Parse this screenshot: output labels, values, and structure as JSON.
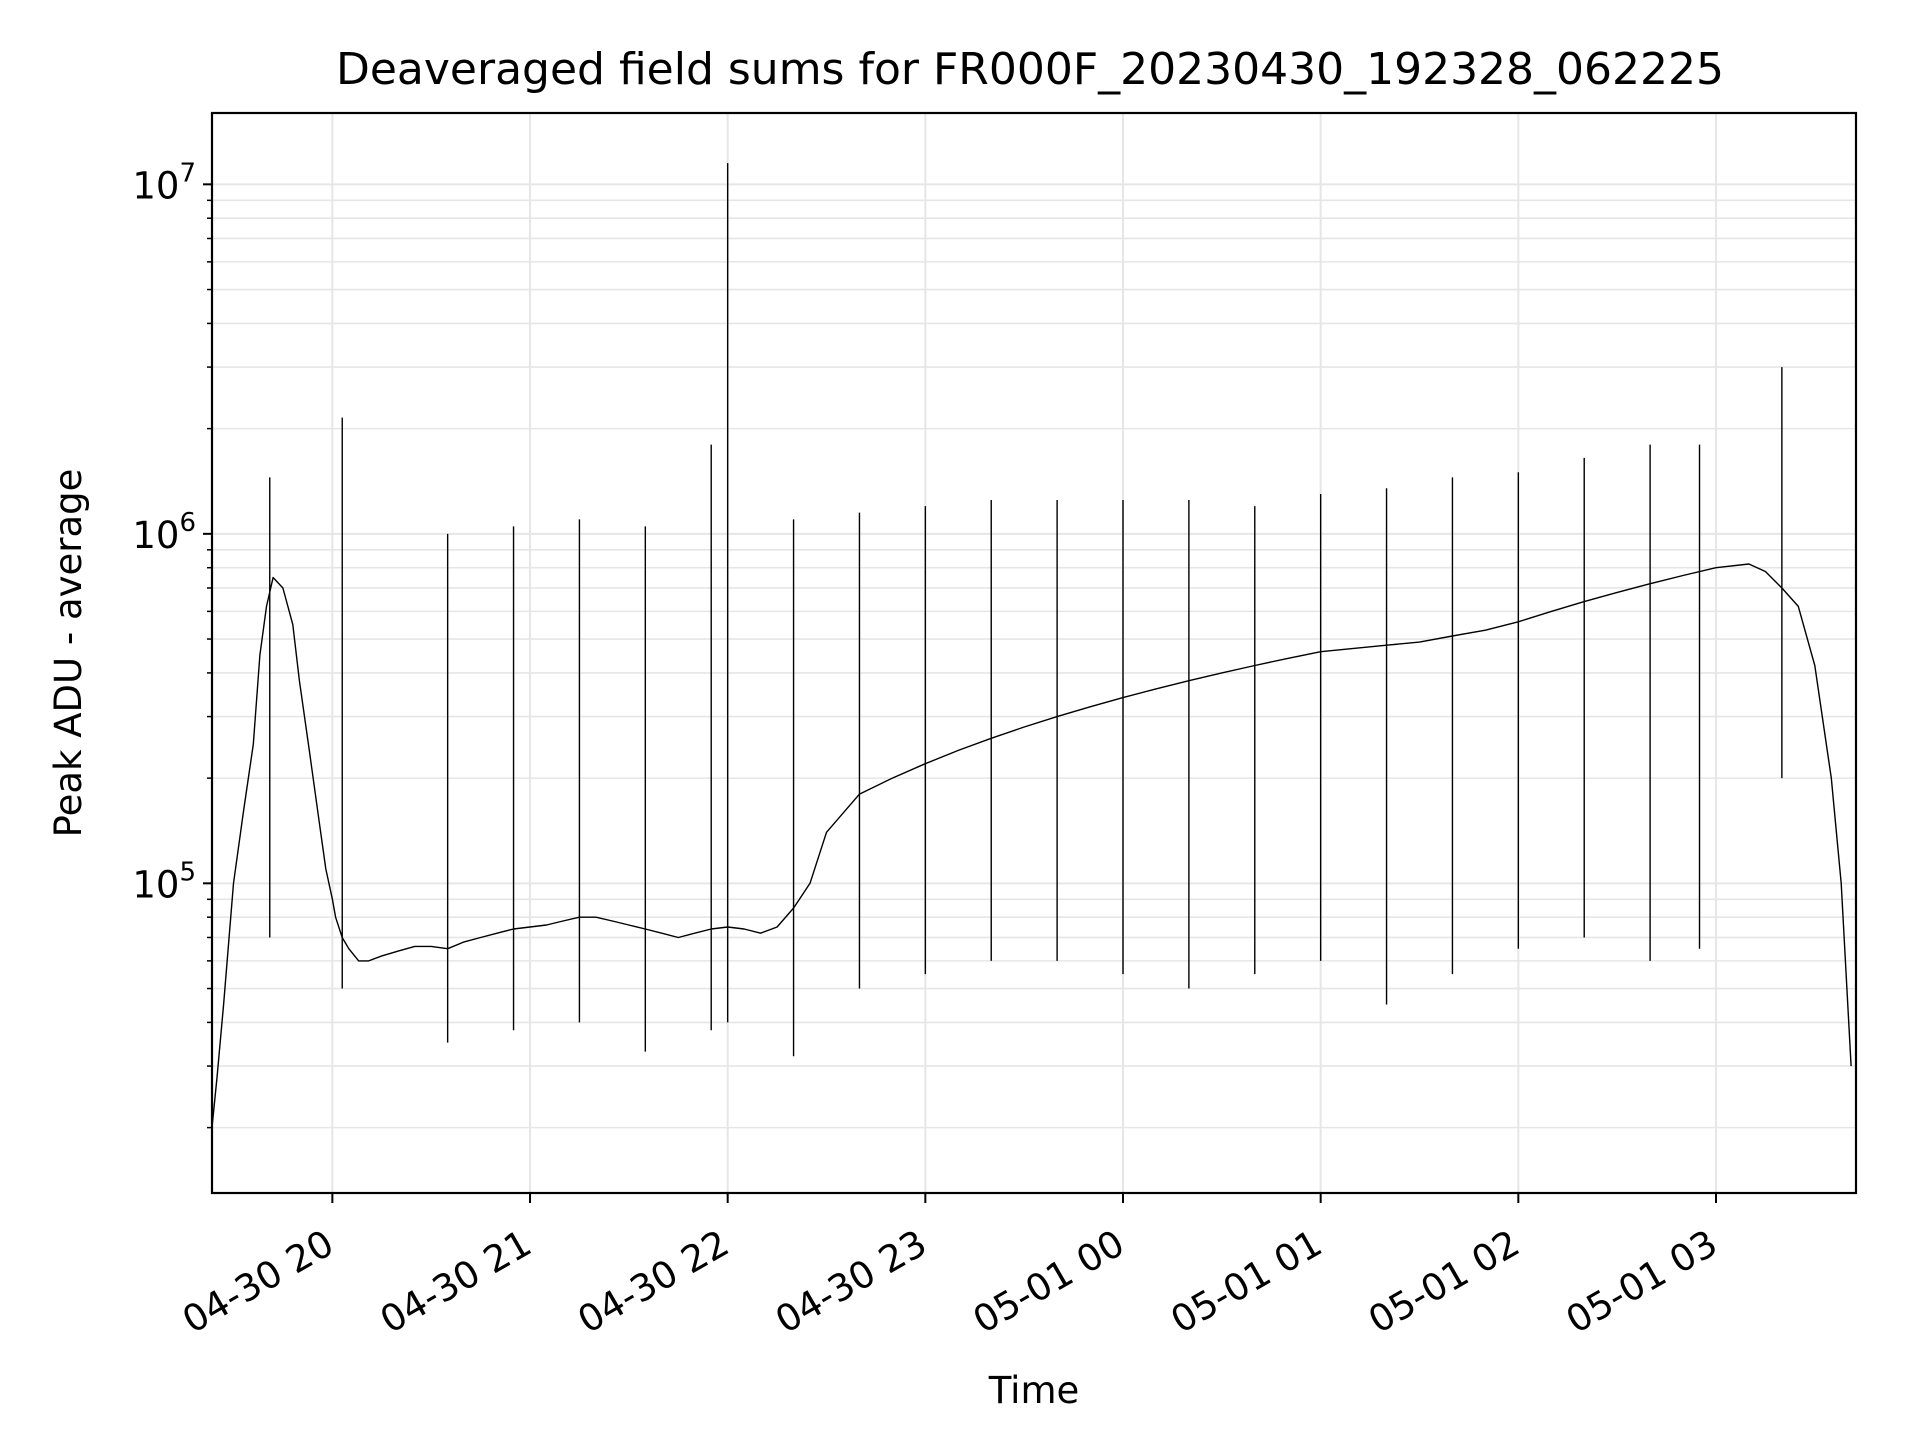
{
  "chart_data": {
    "type": "line",
    "title": "Deaveraged field sums for FR000F_20230430_192328_062225",
    "xlabel": "Time",
    "ylabel": "Peak ADU - average",
    "yscale": "log",
    "grid": true,
    "legend": "none",
    "line_color": "#000000",
    "grid_color": "#e6e6e6",
    "xlim": [
      "2023-04-30 19:23:28",
      "2023-05-01 03:42:30"
    ],
    "ylim": [
      13000,
      16000000
    ],
    "x_ticks": [
      "2023-04-30 20:00",
      "2023-04-30 21:00",
      "2023-04-30 22:00",
      "2023-04-30 23:00",
      "2023-05-01 00:00",
      "2023-05-01 01:00",
      "2023-05-01 02:00",
      "2023-05-01 03:00"
    ],
    "x_tick_labels": [
      "04-30 20",
      "04-30 21",
      "04-30 22",
      "04-30 23",
      "05-01 00",
      "05-01 01",
      "05-01 02",
      "05-01 03"
    ],
    "y_tick_labels": [
      {
        "value": 100000,
        "base": "10",
        "exp": "5"
      },
      {
        "value": 1000000,
        "base": "10",
        "exp": "6"
      },
      {
        "value": 10000000,
        "base": "10",
        "exp": "7"
      }
    ],
    "series": [
      {
        "x": [
          "2023-04-30 19:23:28",
          "2023-04-30 19:25:00",
          "2023-04-30 19:27:00",
          "2023-04-30 19:30:00",
          "2023-04-30 19:33:00",
          "2023-04-30 19:36:00",
          "2023-04-30 19:38:00",
          "2023-04-30 19:40:00",
          "2023-04-30 19:42:00",
          "2023-04-30 19:45:00",
          "2023-04-30 19:48:00",
          "2023-04-30 19:50:00",
          "2023-04-30 19:53:00",
          "2023-04-30 19:56:00",
          "2023-04-30 19:58:00",
          "2023-04-30 20:00:00",
          "2023-04-30 20:01:00",
          "2023-04-30 20:03:00",
          "2023-04-30 20:05:00",
          "2023-04-30 20:08:00",
          "2023-04-30 20:11:00",
          "2023-04-30 20:15:00",
          "2023-04-30 20:20:00",
          "2023-04-30 20:25:00",
          "2023-04-30 20:30:00",
          "2023-04-30 20:35:00",
          "2023-04-30 20:40:00",
          "2023-04-30 20:45:00",
          "2023-04-30 20:50:00",
          "2023-04-30 20:55:00",
          "2023-04-30 21:00:00",
          "2023-04-30 21:05:00",
          "2023-04-30 21:10:00",
          "2023-04-30 21:15:00",
          "2023-04-30 21:20:00",
          "2023-04-30 21:25:00",
          "2023-04-30 21:30:00",
          "2023-04-30 21:35:00",
          "2023-04-30 21:40:00",
          "2023-04-30 21:45:00",
          "2023-04-30 21:50:00",
          "2023-04-30 21:55:00",
          "2023-04-30 22:00:00",
          "2023-04-30 22:05:00",
          "2023-04-30 22:10:00",
          "2023-04-30 22:15:00",
          "2023-04-30 22:20:00",
          "2023-04-30 22:25:00",
          "2023-04-30 22:30:00",
          "2023-04-30 22:40:00",
          "2023-04-30 22:50:00",
          "2023-04-30 23:00:00",
          "2023-04-30 23:10:00",
          "2023-04-30 23:20:00",
          "2023-04-30 23:30:00",
          "2023-04-30 23:40:00",
          "2023-04-30 23:50:00",
          "2023-05-01 00:00:00",
          "2023-05-01 00:10:00",
          "2023-05-01 00:20:00",
          "2023-05-01 00:30:00",
          "2023-05-01 00:40:00",
          "2023-05-01 00:50:00",
          "2023-05-01 01:00:00",
          "2023-05-01 01:10:00",
          "2023-05-01 01:20:00",
          "2023-05-01 01:30:00",
          "2023-05-01 01:40:00",
          "2023-05-01 01:50:00",
          "2023-05-01 02:00:00",
          "2023-05-01 02:10:00",
          "2023-05-01 02:20:00",
          "2023-05-01 02:30:00",
          "2023-05-01 02:40:00",
          "2023-05-01 02:50:00",
          "2023-05-01 03:00:00",
          "2023-05-01 03:10:00",
          "2023-05-01 03:15:00",
          "2023-05-01 03:20:00",
          "2023-05-01 03:25:00",
          "2023-05-01 03:30:00",
          "2023-05-01 03:35:00",
          "2023-05-01 03:38:00",
          "2023-05-01 03:41:00"
        ],
        "y": [
          20000,
          28000,
          45000,
          100000,
          160000,
          250000,
          450000,
          620000,
          750000,
          700000,
          550000,
          380000,
          240000,
          150000,
          110000,
          90000,
          80000,
          70000,
          65000,
          60000,
          60000,
          62000,
          64000,
          66000,
          66000,
          65000,
          68000,
          70000,
          72000,
          74000,
          75000,
          76000,
          78000,
          80000,
          80000,
          78000,
          76000,
          74000,
          72000,
          70000,
          72000,
          74000,
          75000,
          74000,
          72000,
          75000,
          85000,
          100000,
          140000,
          180000,
          200000,
          220000,
          240000,
          260000,
          280000,
          300000,
          320000,
          340000,
          360000,
          380000,
          400000,
          420000,
          440000,
          460000,
          470000,
          480000,
          490000,
          510000,
          530000,
          560000,
          600000,
          640000,
          680000,
          720000,
          760000,
          800000,
          820000,
          780000,
          700000,
          620000,
          420000,
          200000,
          100000,
          30000
        ]
      }
    ],
    "spikes": {
      "x": [
        "2023-04-30 19:41:00",
        "2023-04-30 20:03:00",
        "2023-04-30 20:35:00",
        "2023-04-30 20:55:00",
        "2023-04-30 21:15:00",
        "2023-04-30 21:35:00",
        "2023-04-30 21:55:00",
        "2023-04-30 22:00:00",
        "2023-04-30 22:20:00",
        "2023-04-30 22:40:00",
        "2023-04-30 23:00:00",
        "2023-04-30 23:20:00",
        "2023-04-30 23:40:00",
        "2023-05-01 00:00:00",
        "2023-05-01 00:20:00",
        "2023-05-01 00:40:00",
        "2023-05-01 01:00:00",
        "2023-05-01 01:20:00",
        "2023-05-01 01:40:00",
        "2023-05-01 02:00:00",
        "2023-05-01 02:20:00",
        "2023-05-01 02:40:00",
        "2023-05-01 02:55:00",
        "2023-05-01 03:20:00"
      ],
      "high": [
        1450000,
        2150000,
        1000000,
        1050000,
        1100000,
        1050000,
        1800000,
        11500000,
        1100000,
        1150000,
        1200000,
        1250000,
        1250000,
        1250000,
        1250000,
        1200000,
        1300000,
        1350000,
        1450000,
        1500000,
        1650000,
        1800000,
        1800000,
        3000000
      ],
      "low": [
        70000,
        50000,
        35000,
        38000,
        40000,
        33000,
        38000,
        40000,
        32000,
        50000,
        55000,
        60000,
        60000,
        55000,
        50000,
        55000,
        60000,
        45000,
        55000,
        65000,
        70000,
        60000,
        65000,
        200000
      ]
    }
  }
}
